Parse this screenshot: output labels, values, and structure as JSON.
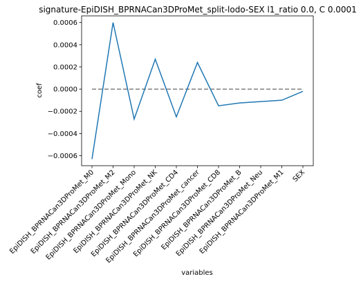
{
  "chart_data": {
    "type": "line",
    "title": "signature-EpiDISH_BPRNACan3DProMet_split-lodo-SEX l1_ratio 0.0, C 0.0001",
    "xlabel": "variables",
    "ylabel": "coef",
    "categories": [
      "EpiDISH_BPRNACan3DProMet_M0",
      "EpiDISH_BPRNACan3DProMet_M2",
      "EpiDISH_BPRNACan3DProMet_Mono",
      "EpiDISH_BPRNACan3DProMet_NK",
      "EpiDISH_BPRNACan3DProMet_CD4",
      "EpiDISH_BPRNACan3DProMet_cancer",
      "EpiDISH_BPRNACan3DProMet_CD8",
      "EpiDISH_BPRNACan3DProMet_B",
      "EpiDISH_BPRNACan3DProMet_Neu",
      "EpiDISH_BPRNACan3DProMet_M1",
      "SEX"
    ],
    "series": [
      {
        "values": [
          -0.00063,
          0.0006,
          -0.00027,
          0.00027,
          -0.00025,
          0.00024,
          -0.00015,
          -0.000125,
          -0.000112,
          -0.0001,
          -2e-05
        ],
        "color": "#1f77b4"
      }
    ],
    "reference_line": {
      "value": 0.0,
      "style": "dashed",
      "color": "#7f7f7f"
    },
    "ylim": [
      -0.00069,
      0.00066
    ],
    "yticks": [
      -0.0006,
      -0.0004,
      -0.0002,
      0.0,
      0.0002,
      0.0004,
      0.0006
    ],
    "ytick_labels": [
      "−0.0006",
      "−0.0004",
      "−0.0002",
      "0.0000",
      "0.0002",
      "0.0004",
      "0.0006"
    ],
    "grid": false,
    "legend": "none"
  }
}
